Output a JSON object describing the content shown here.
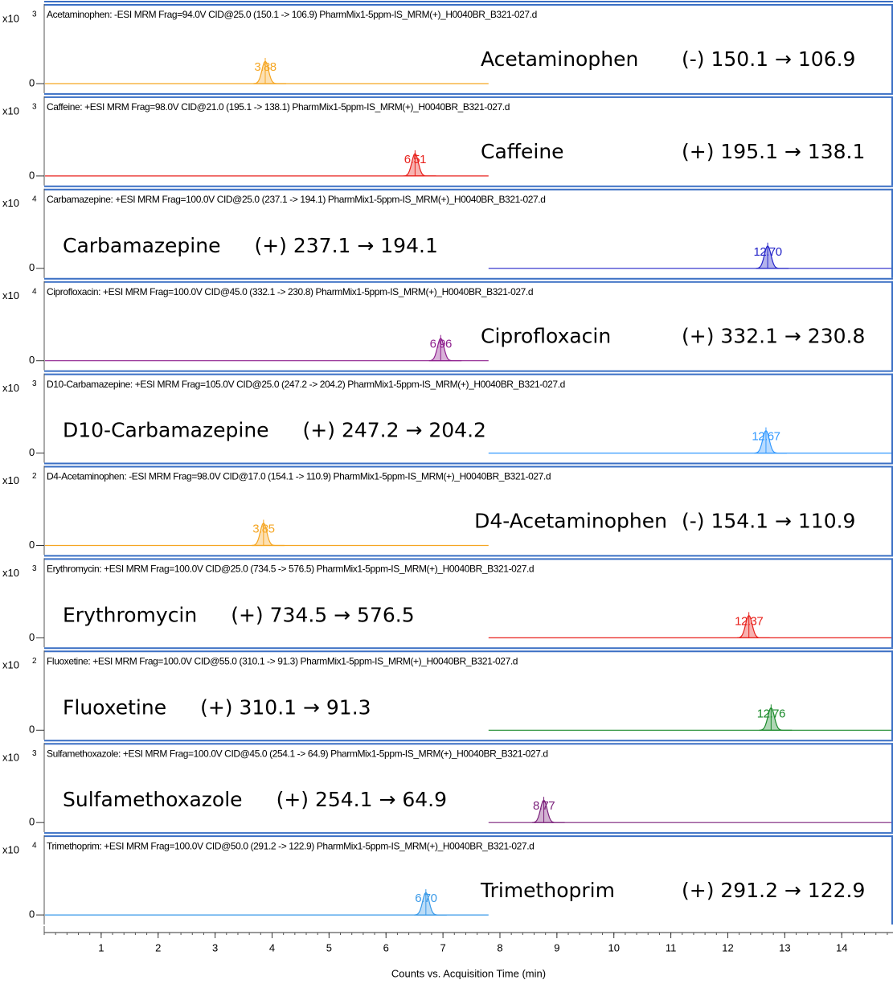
{
  "chart_data": {
    "type": "chromatogram",
    "xlabel": "Counts vs. Acquisition Time (min)",
    "xlim": [
      0,
      14.9
    ],
    "xticks": [
      1,
      2,
      3,
      4,
      5,
      6,
      7,
      8,
      9,
      10,
      11,
      12,
      13,
      14
    ],
    "panels": [
      {
        "header": "Acetaminophen: -ESI MRM Frag=94.0V CID@25.0 (150.1 -> 106.9) PharmMix1-5ppm-IS_MRM(+)_H0040BR_B321-027.d",
        "y_unit": "x10",
        "y_exponent": 3,
        "yticks": [
          0
        ],
        "peak_rt": 3.88,
        "peak_label": "3.88",
        "color": "#f5a623",
        "compound": "Acetaminophen",
        "transition": "(-) 150.1 → 106.9",
        "annotation_position": "right"
      },
      {
        "header": "Caffeine: +ESI MRM Frag=98.0V CID@21.0 (195.1 -> 138.1) PharmMix1-5ppm-IS_MRM(+)_H0040BR_B321-027.d",
        "y_unit": "x10",
        "y_exponent": 3,
        "yticks": [
          0
        ],
        "peak_rt": 6.51,
        "peak_label": "6.51",
        "color": "#e8211c",
        "compound": "Caffeine",
        "transition": "(+) 195.1 → 138.1",
        "annotation_position": "right"
      },
      {
        "header": "Carbamazepine: +ESI MRM Frag=100.0V CID@25.0 (237.1 -> 194.1) PharmMix1-5ppm-IS_MRM(+)_H0040BR_B321-027.d",
        "y_unit": "x10",
        "y_exponent": 4,
        "yticks": [
          0
        ],
        "peak_rt": 12.7,
        "peak_label": "12.70",
        "color": "#2424c8",
        "compound": "Carbamazepine",
        "transition": "(+) 237.1 → 194.1",
        "annotation_position": "left"
      },
      {
        "header": "Ciprofloxacin: +ESI MRM Frag=100.0V CID@45.0 (332.1 -> 230.8) PharmMix1-5ppm-IS_MRM(+)_H0040BR_B321-027.d",
        "y_unit": "x10",
        "y_exponent": 4,
        "yticks": [
          0
        ],
        "peak_rt": 6.96,
        "peak_label": "6.96",
        "color": "#8e1f8e",
        "compound": "Ciprofloxacin",
        "transition": "(+) 332.1 → 230.8",
        "annotation_position": "right"
      },
      {
        "header": "D10-Carbamazepine: +ESI MRM Frag=105.0V CID@25.0 (247.2 -> 204.2) PharmMix1-5ppm-IS_MRM(+)_H0040BR_B321-027.d",
        "y_unit": "x10",
        "y_exponent": 3,
        "yticks": [
          0
        ],
        "peak_rt": 12.67,
        "peak_label": "12.67",
        "color": "#3399ff",
        "compound": "D10-Carbamazepine",
        "transition": "(+) 247.2 → 204.2",
        "annotation_position": "left"
      },
      {
        "header": "D4-Acetaminophen: -ESI MRM Frag=98.0V CID@17.0 (154.1 -> 110.9) PharmMix1-5ppm-IS_MRM(+)_H0040BR_B321-027.d",
        "y_unit": "x10",
        "y_exponent": 2,
        "yticks": [
          0
        ],
        "peak_rt": 3.85,
        "peak_label": "3.85",
        "color": "#f5a623",
        "compound": "D4-Acetaminophen",
        "transition": "(-) 154.1 → 110.9",
        "annotation_position": "right"
      },
      {
        "header": "Erythromycin: +ESI MRM Frag=100.0V CID@25.0 (734.5 -> 576.5) PharmMix1-5ppm-IS_MRM(+)_H0040BR_B321-027.d",
        "y_unit": "x10",
        "y_exponent": 3,
        "yticks": [
          0
        ],
        "peak_rt": 12.37,
        "peak_label": "12.37",
        "color": "#e8211c",
        "compound": "Erythromycin",
        "transition": "(+) 734.5 → 576.5",
        "annotation_position": "left"
      },
      {
        "header": "Fluoxetine: +ESI MRM Frag=100.0V CID@55.0 (310.1 -> 91.3) PharmMix1-5ppm-IS_MRM(+)_H0040BR_B321-027.d",
        "y_unit": "x10",
        "y_exponent": 2,
        "yticks": [
          0
        ],
        "peak_rt": 12.76,
        "peak_label": "12.76",
        "color": "#1a8a2a",
        "compound": "Fluoxetine",
        "transition": "(+) 310.1 → 91.3",
        "annotation_position": "left"
      },
      {
        "header": "Sulfamethoxazole: +ESI MRM Frag=100.0V CID@45.0 (254.1 -> 64.9) PharmMix1-5ppm-IS_MRM(+)_H0040BR_B321-027.d",
        "y_unit": "x10",
        "y_exponent": 3,
        "yticks": [
          0
        ],
        "peak_rt": 8.77,
        "peak_label": "8.77",
        "color": "#7b217b",
        "compound": "Sulfamethoxazole",
        "transition": "(+) 254.1 → 64.9",
        "annotation_position": "left"
      },
      {
        "header": "Trimethoprim: +ESI MRM Frag=100.0V CID@50.0 (291.2 -> 122.9) PharmMix1-5ppm-IS_MRM(+)_H0040BR_B321-027.d",
        "y_unit": "x10",
        "y_exponent": 4,
        "yticks": [
          0
        ],
        "peak_rt": 6.7,
        "peak_label": "6.70",
        "color": "#3a9ae8",
        "compound": "Trimethoprim",
        "transition": "(+) 291.2 → 122.9",
        "annotation_position": "right"
      }
    ]
  }
}
